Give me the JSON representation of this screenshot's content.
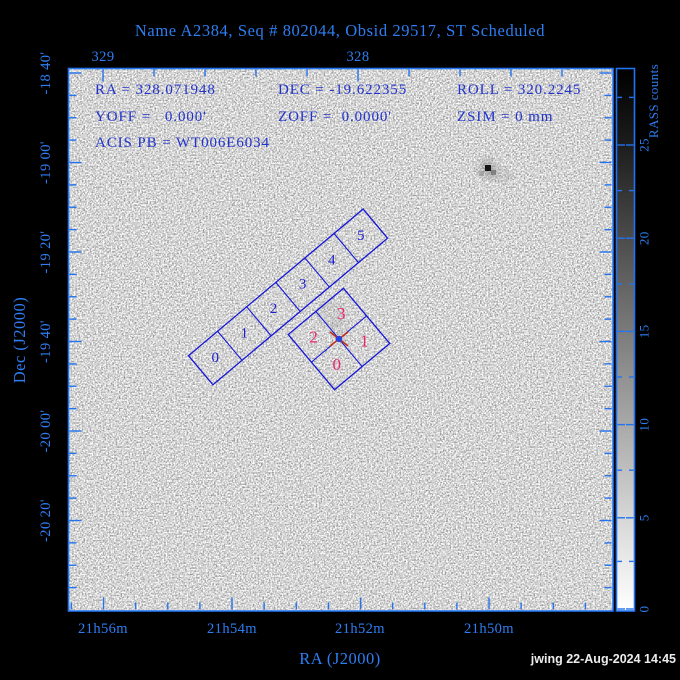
{
  "header": {
    "title": "Name A2384, Seq # 802044, Obsid 29517, ST Scheduled"
  },
  "pointing": {
    "ra": "RA = 328.071948",
    "dec": "DEC = -19.622355",
    "roll": "ROLL = 320.2245",
    "yoff": "YOFF =   0.000'",
    "zoff": "ZOFF =  0.0000'",
    "zsim": "ZSIM = 0 mm",
    "acis_pb": "ACIS PB = WT006E6034"
  },
  "axes": {
    "top": {
      "tick_labels": [
        "329",
        "328"
      ]
    },
    "bottom": {
      "tick_labels": [
        "21h56m",
        "21h54m",
        "21h52m",
        "21h50m"
      ],
      "title": "RA (J2000)"
    },
    "left": {
      "tick_labels": [
        "-18 40'",
        "-19 00'",
        "-19 20'",
        "-19 40'",
        "-20 00'",
        "-20 20'"
      ],
      "title": "Dec (J2000)"
    }
  },
  "colorbar": {
    "title": "RASS counts",
    "tick_labels": [
      "0",
      "5",
      "10",
      "15",
      "20",
      "25"
    ]
  },
  "detectors": {
    "acis_s_chip_labels": [
      "0",
      "1",
      "2",
      "3",
      "4",
      "5"
    ],
    "acis_i_chip_labels": [
      "0",
      "1",
      "2",
      "3"
    ]
  },
  "footer": {
    "credit": "jwing 22-Aug-2024 14:45"
  },
  "colors": {
    "background": "#000000",
    "plot_background": "#ffffff",
    "frame_blue": "#2273f0",
    "label_blue": "#2e7ef2",
    "info_blue": "#2233cc",
    "chip_blue": "#1515d8",
    "acis_i_pink": "#e8256e",
    "marker_red": "#c03018",
    "credit_white": "#ececec"
  },
  "chart_data": {
    "type": "heatmap",
    "title": "Name A2384, Seq # 802044, Obsid 29517, ST Scheduled",
    "xlabel": "RA (J2000)",
    "ylabel": "Dec (J2000)",
    "x_ticks_bottom": [
      "21h56m",
      "21h54m",
      "21h52m",
      "21h50m"
    ],
    "x_ticks_top_degrees": [
      329,
      328
    ],
    "y_ticks": [
      "-18 40'",
      "-19 00'",
      "-19 20'",
      "-19 40'",
      "-20 00'",
      "-20 20'"
    ],
    "grid": false,
    "colorbar": {
      "label": "RASS counts",
      "tick_values": [
        0,
        5,
        10,
        15,
        20,
        25
      ],
      "range_shown": [
        0,
        28
      ],
      "low_color": "#ffffff",
      "high_color": "#000000"
    },
    "image": "ROSAT All-Sky Survey counts map, mostly near 0 (white) with sparse faint gray speckle",
    "pointing": {
      "ra_deg": 328.071948,
      "dec_deg": -19.622355,
      "roll_deg": 320.2245,
      "yoff_arcmin": 0.0,
      "zoff_arcmin": 0.0,
      "zsim_mm": 0,
      "acis_pb": "WT006E6034"
    },
    "overlays": [
      {
        "name": "ACIS-S array",
        "chips": [
          0,
          1,
          2,
          3,
          4,
          5
        ],
        "shape": "1x6 strip of squares rotated ~-40deg, chip 0 at lower-left",
        "color": "blue"
      },
      {
        "name": "ACIS-I array",
        "chips": [
          0,
          1,
          2,
          3
        ],
        "shape": "2x2 square rotated ~-40deg centered on aimpoint; 0 bottom, 1 right, 2 left, 3 top",
        "color": "magenta"
      },
      {
        "name": "aimpoint marker",
        "shape": "red X with blue dot",
        "at": {
          "ra_deg": 328.071948,
          "dec_deg": -19.622355
        }
      }
    ],
    "features": [
      {
        "name": "bright RASS point source",
        "approx_ra": "21h50.0m",
        "approx_dec": "-19 01'",
        "appearance": "dark pixel blob upper right"
      },
      {
        "name": "faint diffuse emission",
        "approx_location": "under ACIS-I array (cluster A2384)"
      }
    ]
  }
}
